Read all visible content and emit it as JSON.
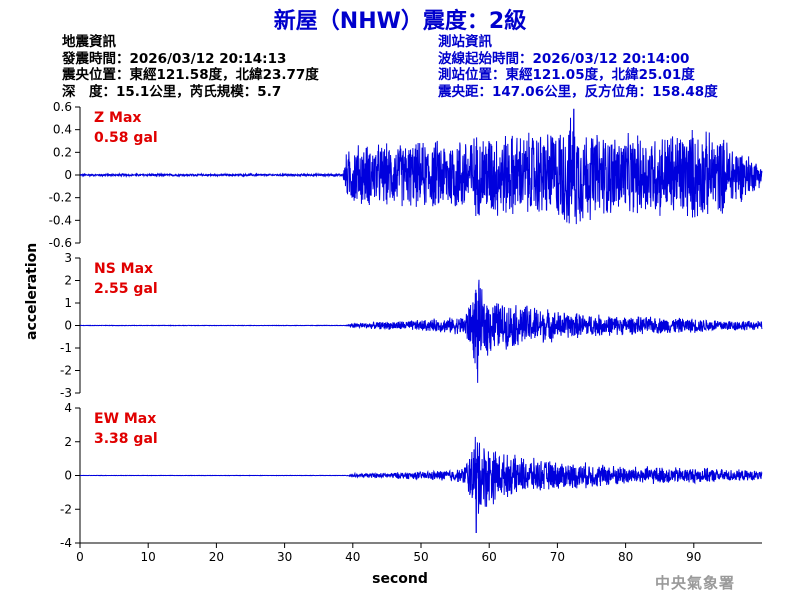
{
  "header": {
    "title": "新屋（NHW）震度：2級",
    "left_lines": [
      "地震資訊",
      "發震時間：2026/03/12 20:14:13",
      "震央位置：東經121.58度，北緯23.77度",
      "深　度：15.1公里，芮氏規模：5.7"
    ],
    "right_lines": [
      "測站資訊",
      "波線起始時間：2026/03/12 20:14:00",
      "測站位置：東經121.05度，北緯25.01度",
      "震央距：147.06公里，反方位角：158.48度"
    ]
  },
  "footer": {
    "agency": "中央氣象署"
  },
  "colors": {
    "trace": "#0000dd",
    "max_label": "#e00000",
    "title": "#0000cc"
  },
  "chart_data": {
    "type": "line",
    "xlabel": "second",
    "ylabel": "acceleration",
    "xlim": [
      0,
      100
    ],
    "xticks": [
      0,
      10,
      20,
      30,
      40,
      50,
      60,
      70,
      80,
      90
    ],
    "panels": [
      {
        "component": "Z",
        "max_title": "Z Max",
        "max_value": "0.58 gal",
        "ylim": [
          -0.6,
          0.6
        ],
        "yticks": [
          -0.6,
          -0.4,
          -0.2,
          0,
          0.2,
          0.4,
          0.6
        ],
        "envelope": [
          [
            0,
            0.01
          ],
          [
            38.5,
            0.01
          ],
          [
            39,
            0.2
          ],
          [
            40,
            0.3
          ],
          [
            45,
            0.3
          ],
          [
            50,
            0.32
          ],
          [
            55,
            0.36
          ],
          [
            60,
            0.42
          ],
          [
            65,
            0.4
          ],
          [
            70,
            0.45
          ],
          [
            72,
            0.55
          ],
          [
            75,
            0.42
          ],
          [
            80,
            0.38
          ],
          [
            85,
            0.4
          ],
          [
            90,
            0.45
          ],
          [
            95,
            0.35
          ],
          [
            100,
            0.1
          ]
        ],
        "peak": [
          72.4,
          0.58
        ]
      },
      {
        "component": "NS",
        "max_title": "NS Max",
        "max_value": "2.55 gal",
        "ylim": [
          -3,
          3
        ],
        "yticks": [
          -3,
          -2,
          -1,
          0,
          1,
          2,
          3
        ],
        "envelope": [
          [
            0,
            0.01
          ],
          [
            39,
            0.01
          ],
          [
            40,
            0.12
          ],
          [
            45,
            0.2
          ],
          [
            52,
            0.3
          ],
          [
            56,
            0.45
          ],
          [
            57.5,
            1.3
          ],
          [
            58.2,
            2.5
          ],
          [
            59,
            1.6
          ],
          [
            62,
            1.1
          ],
          [
            66,
            1.0
          ],
          [
            70,
            0.7
          ],
          [
            75,
            0.55
          ],
          [
            80,
            0.45
          ],
          [
            90,
            0.35
          ],
          [
            100,
            0.2
          ]
        ],
        "peak": [
          58.3,
          -2.55
        ]
      },
      {
        "component": "EW",
        "max_title": "EW Max",
        "max_value": "3.38 gal",
        "ylim": [
          -4,
          4
        ],
        "yticks": [
          -4,
          -2,
          0,
          2,
          4
        ],
        "envelope": [
          [
            0,
            0.01
          ],
          [
            39,
            0.01
          ],
          [
            40,
            0.12
          ],
          [
            45,
            0.18
          ],
          [
            52,
            0.3
          ],
          [
            56,
            0.45
          ],
          [
            57.5,
            1.8
          ],
          [
            58.2,
            3.3
          ],
          [
            59,
            2.3
          ],
          [
            62,
            1.4
          ],
          [
            66,
            1.1
          ],
          [
            70,
            0.9
          ],
          [
            75,
            0.8
          ],
          [
            80,
            0.6
          ],
          [
            90,
            0.5
          ],
          [
            100,
            0.3
          ]
        ],
        "peak": [
          58.1,
          -3.38
        ]
      }
    ]
  }
}
